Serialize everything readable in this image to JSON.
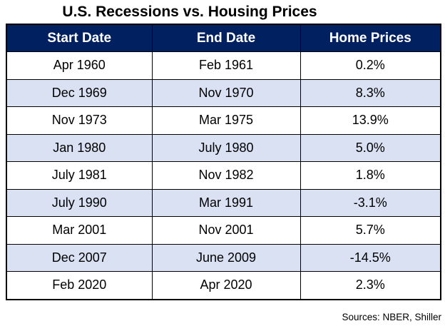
{
  "page_title": "U.S. Recessions vs. Housing Prices",
  "chart_data": {
    "type": "table",
    "title": "U.S. Recessions vs. Housing Prices",
    "columns": [
      "Start Date",
      "End Date",
      "Home Prices"
    ],
    "rows": [
      [
        "Apr 1960",
        "Feb 1961",
        "0.2%"
      ],
      [
        "Dec 1969",
        "Nov 1970",
        "8.3%"
      ],
      [
        "Nov 1973",
        "Mar 1975",
        "13.9%"
      ],
      [
        "Jan 1980",
        "July 1980",
        "5.0%"
      ],
      [
        "July 1981",
        "Nov 1982",
        "1.8%"
      ],
      [
        "July 1990",
        "Mar 1991",
        "-3.1%"
      ],
      [
        "Mar 2001",
        "Nov 2001",
        "5.7%"
      ],
      [
        "Dec 2007",
        "June 2009",
        "-14.5%"
      ],
      [
        "Feb 2020",
        "Apr 2020",
        "2.3%"
      ]
    ],
    "home_price_values_pct": [
      0.2,
      8.3,
      13.9,
      5.0,
      1.8,
      -3.1,
      5.7,
      -14.5,
      2.3
    ],
    "annotations": "Sources: NBER, Shiller",
    "layout": {
      "header_position": "top",
      "alternating_row_shading": true,
      "grid": true
    }
  },
  "sources_note": "Sources: NBER, Shiller",
  "colors": {
    "header_bg": "#002060",
    "header_text": "#FFFFFF",
    "alt_row_bg": "#D9E1F2",
    "border": "#000000",
    "title_text": "#000000"
  }
}
